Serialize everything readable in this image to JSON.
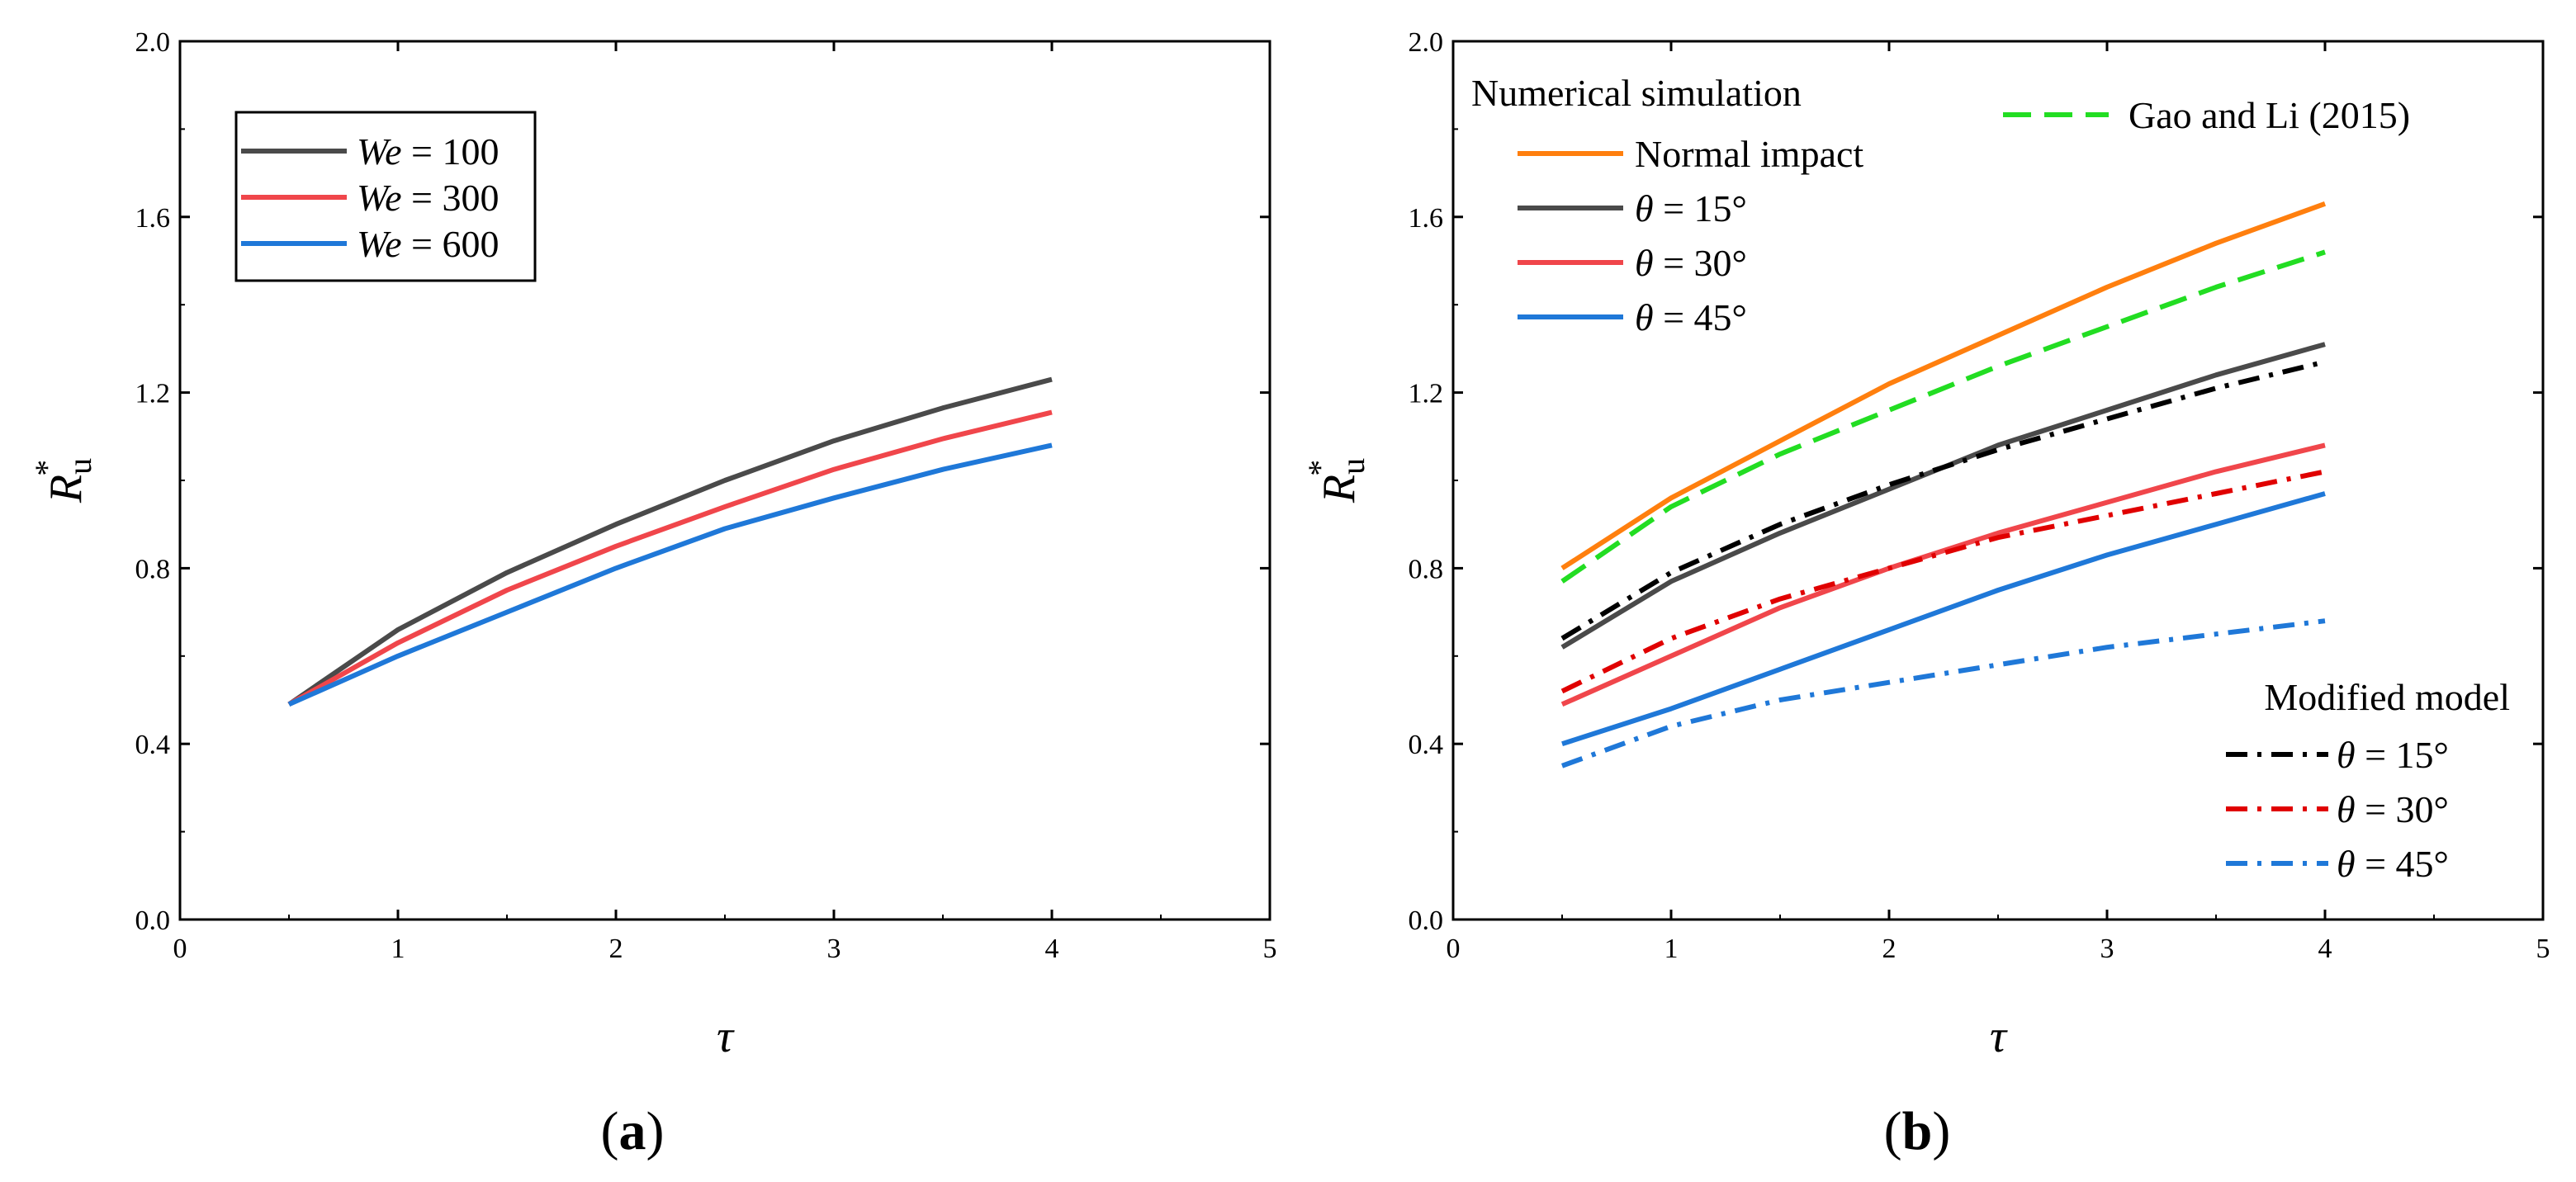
{
  "chart_data": [
    {
      "panel": "a",
      "panel_label": "a",
      "type": "line",
      "xlabel": "τ",
      "ylabel": "R",
      "ylabel_sub": "u",
      "ylabel_sup": "*",
      "xlim": [
        0,
        5
      ],
      "ylim": [
        0.0,
        2.0
      ],
      "xticks": [
        "0",
        "1",
        "2",
        "3",
        "4",
        "5"
      ],
      "yticks": [
        "0.0",
        "0.4",
        "0.8",
        "1.2",
        "1.6",
        "2.0"
      ],
      "grid": false,
      "legend_position": "top-left",
      "series": [
        {
          "name": "We = 100",
          "name_var": "We",
          "name_rest": " = 100",
          "color": "#4a4a4a",
          "style": "solid",
          "x": [
            0.5,
            1.0,
            1.5,
            2.0,
            2.5,
            3.0,
            3.5,
            4.0
          ],
          "y": [
            0.49,
            0.66,
            0.79,
            0.9,
            1.0,
            1.09,
            1.165,
            1.23
          ]
        },
        {
          "name": "We = 300",
          "name_var": "We",
          "name_rest": " = 300",
          "color": "#f0464b",
          "style": "solid",
          "x": [
            0.5,
            1.0,
            1.5,
            2.0,
            2.5,
            3.0,
            3.5,
            4.0
          ],
          "y": [
            0.49,
            0.63,
            0.75,
            0.85,
            0.94,
            1.025,
            1.095,
            1.155
          ]
        },
        {
          "name": "We = 600",
          "name_var": "We",
          "name_rest": " = 600",
          "color": "#1f78d8",
          "style": "solid",
          "x": [
            0.5,
            1.0,
            1.5,
            2.0,
            2.5,
            3.0,
            3.5,
            4.0
          ],
          "y": [
            0.49,
            0.6,
            0.7,
            0.8,
            0.89,
            0.96,
            1.025,
            1.08
          ]
        }
      ]
    },
    {
      "panel": "b",
      "panel_label": "b",
      "type": "line",
      "xlabel": "τ",
      "ylabel": "R",
      "ylabel_sub": "u",
      "ylabel_sup": "*",
      "xlim": [
        0,
        5
      ],
      "ylim": [
        0.0,
        2.0
      ],
      "xticks": [
        "0",
        "1",
        "2",
        "3",
        "4",
        "5"
      ],
      "yticks": [
        "0.0",
        "0.4",
        "0.8",
        "1.2",
        "1.6",
        "2.0"
      ],
      "grid": false,
      "legend_groups": {
        "numerical_title": "Numerical simulation",
        "modified_title": "Modified model"
      },
      "series": [
        {
          "name": "Normal impact",
          "group": "numerical",
          "color": "#ff7f0e",
          "style": "solid",
          "x": [
            0.5,
            1.0,
            1.5,
            2.0,
            2.5,
            3.0,
            3.5,
            4.0
          ],
          "y": [
            0.8,
            0.96,
            1.09,
            1.22,
            1.33,
            1.44,
            1.54,
            1.63
          ]
        },
        {
          "name": "θ = 15°",
          "name_var": "θ",
          "name_rest": " = 15°",
          "group": "numerical",
          "color": "#4a4a4a",
          "style": "solid",
          "x": [
            0.5,
            1.0,
            1.5,
            2.0,
            2.5,
            3.0,
            3.5,
            4.0
          ],
          "y": [
            0.62,
            0.77,
            0.88,
            0.98,
            1.08,
            1.16,
            1.24,
            1.31
          ]
        },
        {
          "name": "θ = 30°",
          "name_var": "θ",
          "name_rest": " = 30°",
          "group": "numerical",
          "color": "#f0464b",
          "style": "solid",
          "x": [
            0.5,
            1.0,
            1.5,
            2.0,
            2.5,
            3.0,
            3.5,
            4.0
          ],
          "y": [
            0.49,
            0.6,
            0.71,
            0.8,
            0.88,
            0.95,
            1.02,
            1.08
          ]
        },
        {
          "name": "θ = 45°",
          "name_var": "θ",
          "name_rest": " = 45°",
          "group": "numerical",
          "color": "#1f78d8",
          "style": "solid",
          "x": [
            0.5,
            1.0,
            1.5,
            2.0,
            2.5,
            3.0,
            3.5,
            4.0
          ],
          "y": [
            0.4,
            0.48,
            0.57,
            0.66,
            0.75,
            0.83,
            0.9,
            0.97
          ]
        },
        {
          "name": "Gao and Li (2015)",
          "group": "reference",
          "color": "#22dd22",
          "style": "dash",
          "x": [
            0.5,
            1.0,
            1.5,
            2.0,
            2.5,
            3.0,
            3.5,
            4.0
          ],
          "y": [
            0.77,
            0.94,
            1.06,
            1.16,
            1.26,
            1.35,
            1.44,
            1.52
          ]
        },
        {
          "name": "θ = 15°",
          "name_var": "θ",
          "name_rest": " = 15°",
          "group": "modified",
          "color": "#000000",
          "style": "dashdot",
          "x": [
            0.5,
            1.0,
            1.5,
            2.0,
            2.5,
            3.0,
            3.5,
            4.0
          ],
          "y": [
            0.64,
            0.79,
            0.9,
            0.99,
            1.07,
            1.14,
            1.21,
            1.27
          ]
        },
        {
          "name": "θ = 30°",
          "name_var": "θ",
          "name_rest": " = 30°",
          "group": "modified",
          "color": "#e00000",
          "style": "dashdot",
          "x": [
            0.5,
            1.0,
            1.5,
            2.0,
            2.5,
            3.0,
            3.5,
            4.0
          ],
          "y": [
            0.52,
            0.64,
            0.73,
            0.8,
            0.87,
            0.92,
            0.97,
            1.02
          ]
        },
        {
          "name": "θ = 45°",
          "name_var": "θ",
          "name_rest": " = 45°",
          "group": "modified",
          "color": "#1f78d8",
          "style": "dashdot",
          "x": [
            0.5,
            1.0,
            1.5,
            2.0,
            2.5,
            3.0,
            3.5,
            4.0
          ],
          "y": [
            0.35,
            0.44,
            0.5,
            0.54,
            0.58,
            0.62,
            0.65,
            0.68
          ]
        }
      ]
    }
  ]
}
